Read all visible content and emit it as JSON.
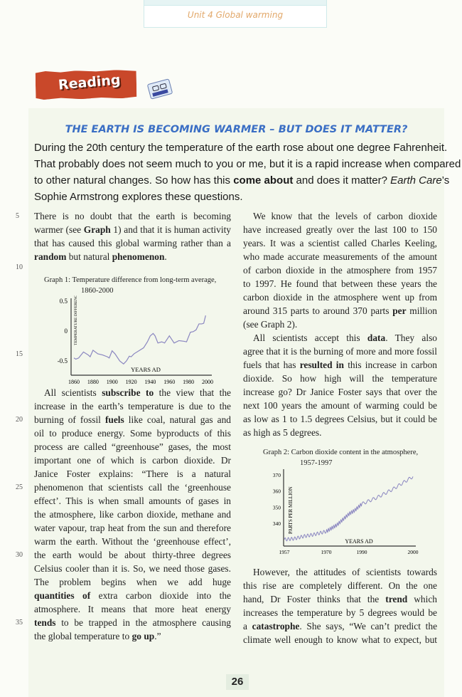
{
  "header": {
    "unit": "Unit 4 Global warming"
  },
  "section": {
    "label": "Reading",
    "icon": "cassette-icon"
  },
  "title": "THE EARTH IS BECOMING WARMER – BUT DOES IT MATTER?",
  "colors": {
    "banner": "#c9482a",
    "title": "#3a6ec4",
    "unit_text": "#e2a86a",
    "plot_line": "#8a86c0"
  },
  "intro": [
    [
      [
        "During the 20th century the temperature of the earth rose about one degree Fahrenheit.",
        ""
      ]
    ],
    [
      [
        "That probably does not seem much to you or me, but it is a rapid increase when compared",
        ""
      ]
    ],
    [
      [
        "to other natural changes. So how has this ",
        ""
      ],
      [
        "come about",
        "b"
      ],
      [
        " and does it matter? ",
        ""
      ],
      [
        "Earth Care",
        "i"
      ],
      [
        "’s",
        ""
      ]
    ],
    [
      [
        "Sophie Armstrong explores these questions.",
        ""
      ]
    ]
  ],
  "left_col_1": [
    {
      "n": "5",
      "segs": [
        [
          "There is no doubt that the earth is becoming",
          ""
        ]
      ]
    },
    {
      "segs": [
        [
          "warmer (see ",
          ""
        ],
        [
          "Graph",
          "b"
        ],
        [
          " 1) and that it is human activity",
          ""
        ]
      ]
    },
    {
      "segs": [
        [
          "that has caused this global warming rather than a",
          ""
        ]
      ]
    },
    {
      "last": true,
      "segs": [
        [
          "random",
          "b"
        ],
        [
          " but natural ",
          ""
        ],
        [
          "phenomenon",
          "b"
        ],
        [
          ".",
          ""
        ]
      ]
    }
  ],
  "margin_numbers": [
    "10",
    "15"
  ],
  "left_col_2": [
    {
      "indent": true,
      "segs": [
        [
          "All scientists ",
          ""
        ],
        [
          "subscribe to",
          "b"
        ],
        [
          " the view that the",
          ""
        ]
      ]
    },
    {
      "segs": [
        [
          "increase in the earth’s temperature is due to the",
          ""
        ]
      ]
    },
    {
      "n": "20",
      "segs": [
        [
          "burning of fossil ",
          ""
        ],
        [
          "fuels",
          "b"
        ],
        [
          " like coal, natural gas and",
          ""
        ]
      ]
    },
    {
      "segs": [
        [
          "oil to produce energy. Some byproducts of this",
          ""
        ]
      ]
    },
    {
      "segs": [
        [
          "process are called “greenhouse” gases, the most",
          ""
        ]
      ]
    },
    {
      "segs": [
        [
          "important one of which is carbon dioxide. Dr",
          ""
        ]
      ]
    },
    {
      "segs": [
        [
          "Janice Foster explains: “There is a natural",
          ""
        ]
      ]
    },
    {
      "n": "25",
      "segs": [
        [
          "phenomenon that scientists call the ‘greenhouse",
          ""
        ]
      ]
    },
    {
      "segs": [
        [
          "effect’. This is when small amounts of gases in",
          ""
        ]
      ]
    },
    {
      "segs": [
        [
          "the atmosphere, like carbon dioxide, methane and",
          ""
        ]
      ]
    },
    {
      "segs": [
        [
          "water vapour, trap heat from the sun and therefore",
          ""
        ]
      ]
    },
    {
      "segs": [
        [
          "warm the earth. Without the ‘greenhouse effect’,",
          ""
        ]
      ]
    },
    {
      "n": "30",
      "segs": [
        [
          "the earth would be about thirty-three degrees",
          ""
        ]
      ]
    },
    {
      "segs": [
        [
          "Celsius cooler than it is. So, we need those gases.",
          ""
        ]
      ]
    },
    {
      "segs": [
        [
          "The problem begins when we add huge",
          ""
        ]
      ]
    },
    {
      "segs": [
        [
          "quantities of",
          "b"
        ],
        [
          " extra carbon dioxide into the",
          ""
        ]
      ]
    },
    {
      "segs": [
        [
          "atmosphere. It means that more heat energy",
          ""
        ]
      ]
    },
    {
      "n": "35",
      "segs": [
        [
          "tends",
          "b"
        ],
        [
          " to be trapped in the atmosphere causing",
          ""
        ]
      ]
    },
    {
      "last": true,
      "segs": [
        [
          "the global temperature to ",
          ""
        ],
        [
          "go up",
          "b"
        ],
        [
          ".”",
          ""
        ]
      ]
    }
  ],
  "right_col_1": [
    {
      "indent": true,
      "segs": [
        [
          "We know that the levels of carbon dioxide",
          ""
        ]
      ]
    },
    {
      "segs": [
        [
          "have increased greatly over the last 100 to 150",
          ""
        ]
      ]
    },
    {
      "segs": [
        [
          "years. It was a scientist called Charles Keeling,",
          ""
        ]
      ]
    },
    {
      "segs": [
        [
          "who made accurate measurements of the amount",
          ""
        ]
      ]
    },
    {
      "segs": [
        [
          "of carbon dioxide in the atmosphere from 1957",
          ""
        ]
      ]
    },
    {
      "segs": [
        [
          "to 1997. He found that between these years the",
          ""
        ]
      ]
    },
    {
      "segs": [
        [
          "carbon dioxide in the atmosphere went up from",
          ""
        ]
      ]
    },
    {
      "segs": [
        [
          "around 315 parts to around 370 parts ",
          ""
        ],
        [
          "per",
          "b"
        ],
        [
          " million",
          ""
        ]
      ]
    },
    {
      "last": true,
      "segs": [
        [
          "(see Graph 2).",
          ""
        ]
      ]
    },
    {
      "indent": true,
      "segs": [
        [
          "All scientists accept this ",
          ""
        ],
        [
          "data",
          "b"
        ],
        [
          ". They also",
          ""
        ]
      ]
    },
    {
      "segs": [
        [
          "agree that it is the burning of more and more fossil",
          ""
        ]
      ]
    },
    {
      "segs": [
        [
          "fuels that has ",
          ""
        ],
        [
          "resulted in",
          "b"
        ],
        [
          " this increase in carbon",
          ""
        ]
      ]
    },
    {
      "segs": [
        [
          "dioxide. So how high will the temperature",
          ""
        ]
      ]
    },
    {
      "segs": [
        [
          "increase go? Dr Janice Foster says that over the",
          ""
        ]
      ]
    },
    {
      "segs": [
        [
          "next 100 years the amount of warming could be",
          ""
        ]
      ]
    },
    {
      "segs": [
        [
          "as low as 1 to 1.5 degrees Celsius, but it could be",
          ""
        ]
      ]
    },
    {
      "last": true,
      "segs": [
        [
          "as high as 5 degrees.",
          ""
        ]
      ]
    }
  ],
  "right_col_2": [
    {
      "indent": true,
      "segs": [
        [
          "However, the attitudes of scientists towards",
          ""
        ]
      ]
    },
    {
      "segs": [
        [
          "this rise are completely different. On the one",
          ""
        ]
      ]
    },
    {
      "segs": [
        [
          "hand, Dr Foster thinks that the ",
          ""
        ],
        [
          "trend",
          "b"
        ],
        [
          " which",
          ""
        ]
      ]
    },
    {
      "segs": [
        [
          "increases the temperature by 5 degrees would be",
          ""
        ]
      ]
    },
    {
      "segs": [
        [
          "a ",
          ""
        ],
        [
          "catastrophe",
          "b"
        ],
        [
          ". She says, “We can’t predict the",
          ""
        ]
      ]
    },
    {
      "segs": [
        [
          "climate well enough to know what to expect, but",
          ""
        ]
      ]
    }
  ],
  "page_number": "26",
  "chart_data": [
    {
      "type": "line",
      "title": "Graph 1:  Temperature difference from long-term average,",
      "subtitle": "1860-2000",
      "xlabel": "YEARS AD",
      "ylabel": "TEMPERATURE DIFFERENCE (°F)",
      "x_ticks": [
        "1860",
        "1880",
        "1900",
        "1920",
        "1940",
        "1960",
        "1980",
        "2000"
      ],
      "y_ticks": [
        "0.5",
        "0",
        "-0.5"
      ],
      "xlim": [
        1860,
        2000
      ],
      "ylim": [
        -0.6,
        0.55
      ],
      "x": [
        1860,
        1862,
        1865,
        1870,
        1875,
        1877,
        1880,
        1885,
        1890,
        1895,
        1897,
        1900,
        1903,
        1908,
        1912,
        1915,
        1918,
        1920,
        1923,
        1928,
        1933,
        1937,
        1940,
        1943,
        1945,
        1948,
        1952,
        1955,
        1960,
        1965,
        1970,
        1975,
        1978,
        1982,
        1985,
        1988,
        1991,
        1994,
        1996,
        1998
      ],
      "y": [
        -0.45,
        -0.47,
        -0.45,
        -0.35,
        -0.4,
        -0.43,
        -0.32,
        -0.38,
        -0.4,
        -0.43,
        -0.45,
        -0.33,
        -0.38,
        -0.5,
        -0.55,
        -0.5,
        -0.42,
        -0.43,
        -0.38,
        -0.33,
        -0.28,
        -0.18,
        -0.08,
        -0.04,
        -0.08,
        -0.2,
        -0.18,
        -0.2,
        -0.08,
        -0.2,
        -0.16,
        -0.17,
        -0.18,
        -0.02,
        -0.01,
        0.02,
        0.12,
        0.12,
        0.13,
        0.26
      ]
    },
    {
      "type": "line",
      "title": "Graph 2:  Carbon dioxide content in the atmosphere,",
      "subtitle": "1957-1997",
      "xlabel": "YEARS AD",
      "ylabel": "PARTS PER MILLION",
      "x_ticks": [
        "1957",
        "1970",
        "1990",
        "2000"
      ],
      "y_ticks": [
        "370",
        "360",
        "350",
        "340"
      ],
      "x": [
        1957,
        1960,
        1963,
        1966,
        1970,
        1973,
        1976,
        1980,
        1983,
        1986,
        1990,
        1993,
        1996,
        2000
      ],
      "y": [
        330,
        330.5,
        332,
        333,
        335,
        337,
        339,
        343,
        346,
        348,
        352,
        356,
        361,
        369
      ]
    }
  ]
}
